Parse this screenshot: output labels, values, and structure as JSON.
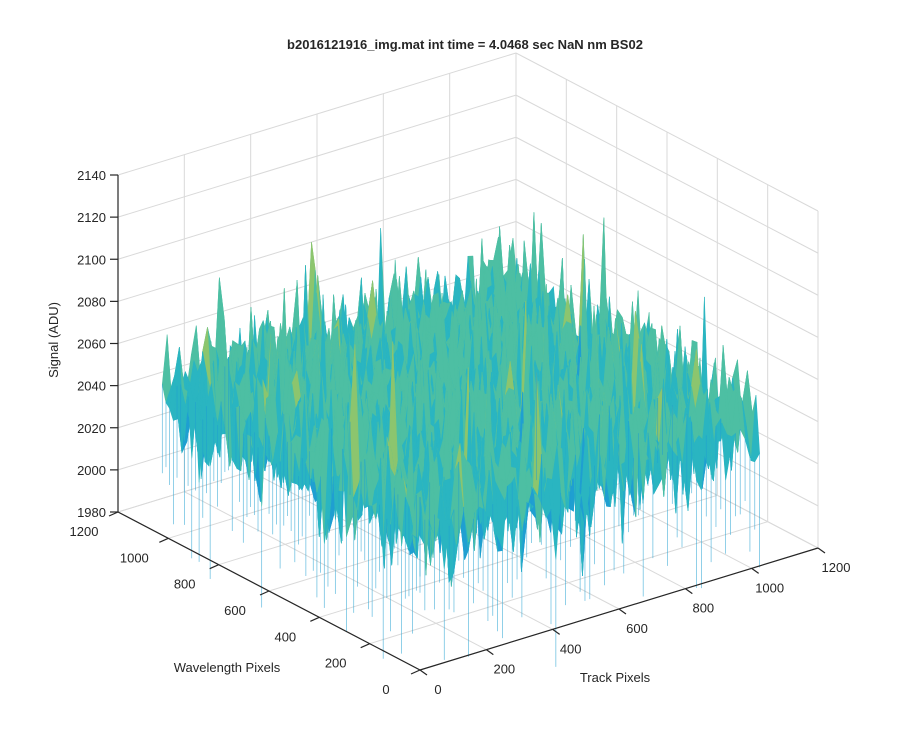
{
  "chart_data": {
    "type": "surface3d",
    "title": "b2016121916_img.mat int time = 4.0468 sec  NaN nm BS02",
    "xlabel": "Track Pixels",
    "ylabel": "Wavelength Pixels",
    "zlabel": "Signal (ADU)",
    "xlim": [
      0,
      1200
    ],
    "ylim": [
      0,
      1200
    ],
    "zlim": [
      1980,
      2140
    ],
    "xticks": [
      "0",
      "200",
      "400",
      "600",
      "800",
      "1000",
      "1200"
    ],
    "yticks": [
      "0",
      "200",
      "400",
      "600",
      "800",
      "1000",
      "1200"
    ],
    "zticks": [
      "1980",
      "2000",
      "2020",
      "2040",
      "2060",
      "2080",
      "2100",
      "2120",
      "2140"
    ],
    "grid": true,
    "data_extent": {
      "x": [
        0,
        1024
      ],
      "y": [
        0,
        1024
      ]
    },
    "signal_summary": {
      "typical_range": [
        2015,
        2080
      ],
      "min_approx": 1990,
      "max_approx": 2125
    },
    "colormap": [
      "#0072BD",
      "#1F9FD1",
      "#2AB5C1",
      "#4DBFA3",
      "#8CC56E",
      "#C9C649",
      "#E8D32E"
    ]
  }
}
